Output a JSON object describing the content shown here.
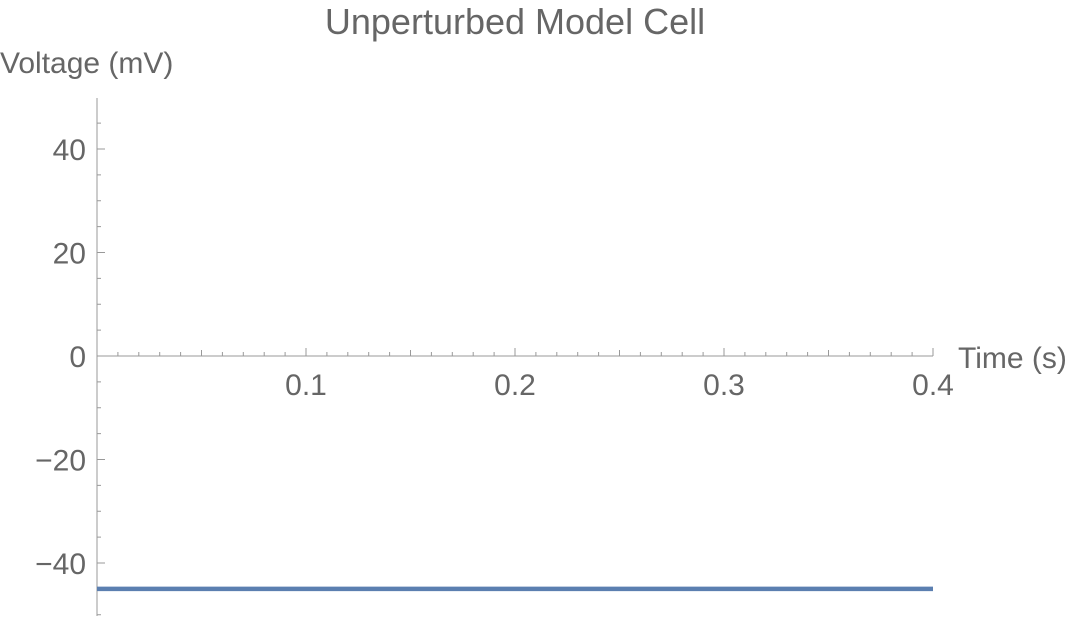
{
  "chart_data": {
    "type": "line",
    "title": "Unperturbed Model Cell",
    "xlabel": "Time (s)",
    "ylabel": "Voltage (mV)",
    "xlim": [
      0,
      0.4
    ],
    "ylim": [
      -50,
      50
    ],
    "xticks": [
      0.1,
      0.2,
      0.3,
      0.4
    ],
    "xtick_labels": [
      "0.1",
      "0.2",
      "0.3",
      "0.4"
    ],
    "yticks": [
      -40,
      -20,
      0,
      20,
      40
    ],
    "ytick_labels": [
      "−40",
      "−20",
      "0",
      "20",
      "40"
    ],
    "grid": false,
    "series": [
      {
        "color": "#5b7fb0",
        "x": [
          0,
          0.4
        ],
        "y": [
          -45,
          -45
        ]
      }
    ]
  }
}
